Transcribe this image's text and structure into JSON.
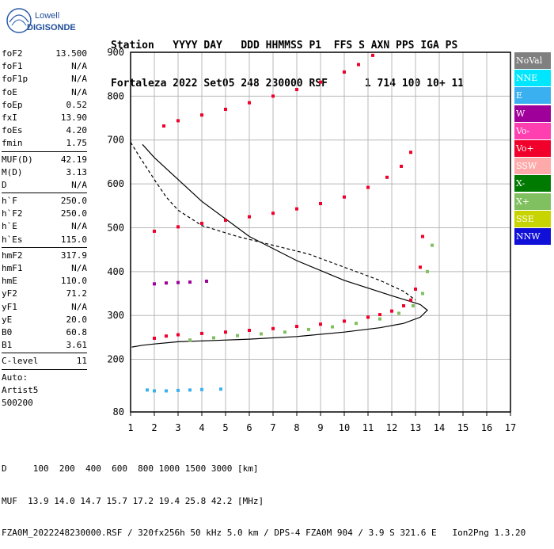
{
  "logo": {
    "line1": "Lowell",
    "line2": "DIGISONDE"
  },
  "header": {
    "line1": "Station   YYYY DAY   DDD HHMMSS P1  FFS S AXN PPS IGA PS",
    "line2": "Fortaleza 2022 Set05 248 230000 RSF      1 714 100 10+ 11"
  },
  "params": [
    {
      "name": "foF2",
      "value": "13.500"
    },
    {
      "name": "foF1",
      "value": "N/A"
    },
    {
      "name": "foF1p",
      "value": "N/A"
    },
    {
      "name": "foE",
      "value": "N/A"
    },
    {
      "name": "foEp",
      "value": "0.52"
    },
    {
      "name": "fxI",
      "value": "13.90"
    },
    {
      "name": "foEs",
      "value": "4.20"
    },
    {
      "name": "fmin",
      "value": "1.75"
    },
    {
      "sep": true
    },
    {
      "name": "MUF(D)",
      "value": "42.19"
    },
    {
      "name": "M(D)",
      "value": "3.13"
    },
    {
      "name": "D",
      "value": "N/A"
    },
    {
      "sep": true
    },
    {
      "name": "h`F",
      "value": "250.0"
    },
    {
      "name": "h`F2",
      "value": "250.0"
    },
    {
      "name": "h`E",
      "value": "N/A"
    },
    {
      "name": "h`Es",
      "value": "115.0"
    },
    {
      "sep": true
    },
    {
      "name": "hmF2",
      "value": "317.9"
    },
    {
      "name": "hmF1",
      "value": "N/A"
    },
    {
      "name": "hmE",
      "value": "110.0"
    },
    {
      "name": "yF2",
      "value": "71.2"
    },
    {
      "name": "yF1",
      "value": "N/A"
    },
    {
      "name": "yE",
      "value": "20.0"
    },
    {
      "name": "B0",
      "value": "60.8"
    },
    {
      "name": "B1",
      "value": "3.61"
    },
    {
      "sep": true
    },
    {
      "name": "C-level",
      "value": "11"
    },
    {
      "sep": true
    },
    {
      "text": "Auto:"
    },
    {
      "text": "Artist5"
    },
    {
      "text": "500200"
    }
  ],
  "legend": [
    {
      "label": "NoVal",
      "color": "#808080"
    },
    {
      "label": "NNE",
      "color": "#00e6ff"
    },
    {
      "label": "E",
      "color": "#3ab0f0"
    },
    {
      "label": "W",
      "color": "#a0009a"
    },
    {
      "label": "Vo-",
      "color": "#ff3fb0"
    },
    {
      "label": "Vo+",
      "color": "#f0002a"
    },
    {
      "label": "SSW",
      "color": "#ffaaaa"
    },
    {
      "label": "X-",
      "color": "#007a00"
    },
    {
      "label": "X+",
      "color": "#80c060"
    },
    {
      "label": "SSE",
      "color": "#c8d400"
    },
    {
      "label": "NNW",
      "color": "#1010d8"
    }
  ],
  "footer": {
    "line1": "D     100  200  400  600  800 1000 1500 3000 [km]",
    "line2": "MUF  13.9 14.0 14.7 15.7 17.2 19.4 25.8 42.2 [MHz]",
    "line3": "FZA0M_2022248230000.RSF / 320fx256h 50 kHz 5.0 km / DPS-4 FZA0M 904 / 3.9 S 321.6 E   Ion2Png 1.3.20"
  },
  "chart_data": {
    "type": "scatter",
    "xlim": [
      1,
      17
    ],
    "ylim": [
      80,
      900
    ],
    "x_ticks": [
      "1",
      "2",
      "3",
      "4",
      "5",
      "6",
      "7",
      "8",
      "9",
      "10",
      "11",
      "12",
      "13",
      "14",
      "15",
      "16",
      "17"
    ],
    "y_ticks": [
      "80",
      "200",
      "300",
      "400",
      "500",
      "600",
      "700",
      "800",
      "900"
    ],
    "grid": true,
    "series": [
      {
        "name": "profile",
        "style": "solid",
        "x": [
          1.05,
          1.5,
          2.0,
          3.0,
          4.5,
          6.0,
          8.0,
          10.0,
          11.5,
          12.5,
          13.2,
          13.5,
          13.2,
          12.0,
          10.0,
          8.0,
          6.0,
          4.0,
          2.0,
          1.5
        ],
        "y": [
          228,
          232,
          235,
          240,
          243,
          246,
          252,
          262,
          272,
          282,
          296,
          312,
          325,
          345,
          380,
          425,
          480,
          560,
          660,
          690
        ]
      },
      {
        "name": "dashed-profile",
        "style": "dashed",
        "x": [
          1.0,
          1.4,
          2.0,
          2.5,
          3.0,
          4.0,
          5.5,
          7.0,
          8.5,
          10.0,
          11.5,
          12.5,
          13.0
        ],
        "y": [
          695,
          660,
          610,
          570,
          540,
          505,
          480,
          460,
          440,
          410,
          380,
          355,
          335
        ]
      },
      {
        "name": "F2-o-trace",
        "color": "#f0002a",
        "x": [
          2.0,
          2.5,
          3.0,
          4.0,
          5.0,
          6.0,
          7.0,
          8.0,
          9.0,
          10.0,
          11.0,
          11.5,
          12.0,
          12.5,
          12.8,
          13.0,
          13.2,
          13.3
        ],
        "y": [
          248,
          253,
          256,
          259,
          262,
          266,
          270,
          275,
          280,
          287,
          296,
          302,
          310,
          322,
          335,
          360,
          410,
          480
        ]
      },
      {
        "name": "F2-x-trace",
        "color": "#80c060",
        "x": [
          3.5,
          4.5,
          5.5,
          6.5,
          7.5,
          8.5,
          9.5,
          10.5,
          11.5,
          12.3,
          12.9,
          13.3,
          13.5,
          13.7
        ],
        "y": [
          244,
          249,
          254,
          258,
          262,
          268,
          274,
          282,
          292,
          305,
          322,
          350,
          400,
          460
        ]
      },
      {
        "name": "F2-2hop-o",
        "color": "#f0002a",
        "x": [
          2.0,
          3.0,
          4.0,
          5.0,
          6.0,
          7.0,
          8.0,
          9.0,
          10.0,
          11.0,
          11.8,
          12.4,
          12.8
        ],
        "y": [
          492,
          502,
          510,
          517,
          525,
          533,
          543,
          555,
          570,
          592,
          615,
          640,
          672
        ]
      },
      {
        "name": "F2-3hop-o",
        "color": "#f0002a",
        "x": [
          2.4,
          3.0,
          4.0,
          5.0,
          6.0,
          7.0,
          8.0,
          9.0,
          10.0,
          10.6,
          11.2
        ],
        "y": [
          732,
          744,
          757,
          770,
          785,
          800,
          815,
          832,
          855,
          872,
          893
        ]
      },
      {
        "name": "Es-trace",
        "color": "#a0009a",
        "x": [
          2.0,
          2.5,
          3.0,
          3.5,
          4.2
        ],
        "y": [
          372,
          374,
          375,
          376,
          378
        ]
      },
      {
        "name": "low-Es",
        "color": "#3ab0f0",
        "x": [
          1.7,
          2.0,
          2.5,
          3.0,
          3.5,
          4.0,
          4.8
        ],
        "y": [
          130,
          128,
          128,
          129,
          130,
          131,
          132
        ]
      }
    ]
  }
}
